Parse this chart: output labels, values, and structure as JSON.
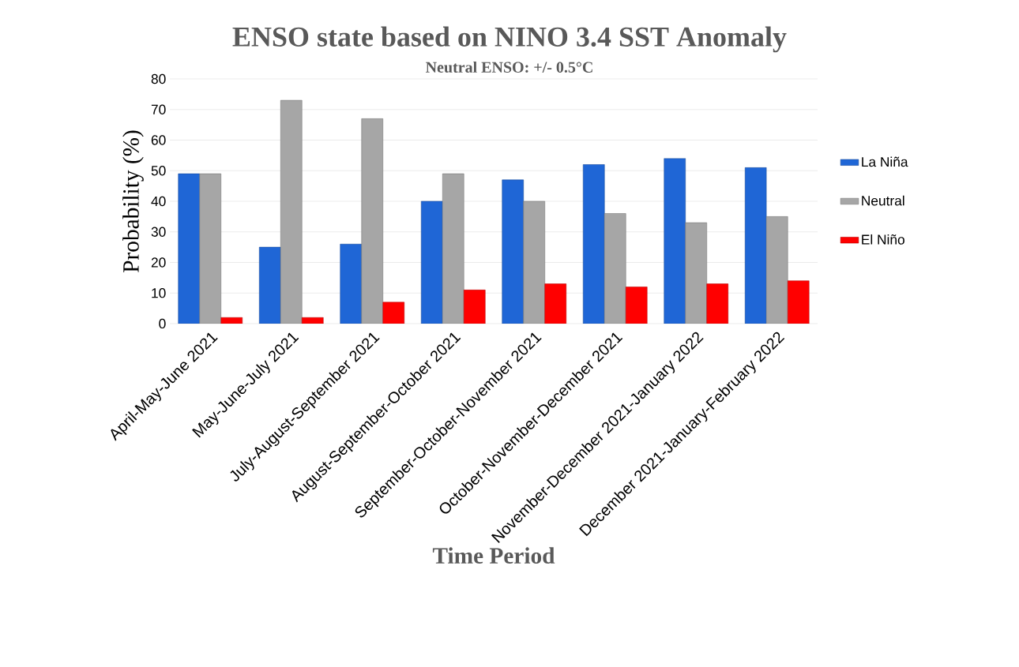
{
  "chart_data": {
    "type": "bar",
    "title": "ENSO state based on NINO 3.4 SST Anomaly",
    "subtitle": "Neutral ENSO: +/- 0.5°C",
    "xlabel": "Time Period",
    "ylabel": "Probability (%)",
    "categories": [
      "April-May-June 2021",
      "May-June-July 2021",
      "July-August-September 2021",
      "August-September-October 2021",
      "September-October-November 2021",
      "October-November-December 2021",
      "November-December 2021-January 2022",
      "December 2021-January-February 2022"
    ],
    "series": [
      {
        "name": "La Niña",
        "color": "#1f66d6",
        "values": [
          49,
          25,
          26,
          40,
          47,
          52,
          54,
          51
        ]
      },
      {
        "name": "Neutral",
        "color": "#a6a6a6",
        "values": [
          49,
          73,
          67,
          49,
          40,
          36,
          33,
          35
        ]
      },
      {
        "name": "El Niño",
        "color": "#ff0000",
        "values": [
          2,
          2,
          7,
          11,
          13,
          12,
          13,
          14
        ]
      }
    ],
    "ylim": [
      0,
      80
    ],
    "yticks": [
      0,
      10,
      20,
      30,
      40,
      50,
      60,
      70,
      80
    ],
    "grid": "y",
    "legend": "right"
  }
}
